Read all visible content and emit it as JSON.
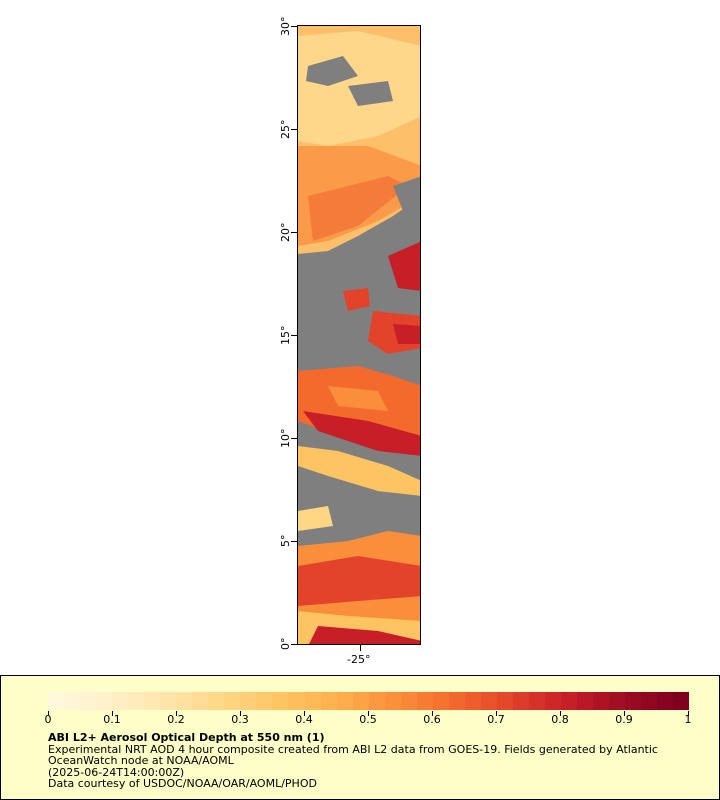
{
  "map": {
    "y_labels": [
      "0°",
      "5°",
      "10°",
      "15°",
      "20°",
      "25°",
      "30°"
    ],
    "x_labels": [
      "-25°"
    ]
  },
  "colorbar": {
    "labels": [
      "0",
      "0.1",
      "0.2",
      "0.3",
      "0.4",
      "0.5",
      "0.6",
      "0.7",
      "0.8",
      "0.9",
      "1"
    ],
    "colors": [
      "#fff8dc",
      "#fff0c8",
      "#ffe4a8",
      "#ffd684",
      "#ffc462",
      "#ffae4a",
      "#fb8e3a",
      "#f36a2c",
      "#e3432a",
      "#c81e28",
      "#9c0c22",
      "#800020"
    ]
  },
  "caption": {
    "title": "ABI L2+ Aerosol Optical Depth at 550 nm (1)",
    "line1": "Experimental NRT AOD 4 hour composite created from ABI L2 data from GOES-19. Fields generated by Atlantic",
    "line2": "OceanWatch node at NOAA/AOML",
    "line3": "(2025-06-24T14:00:00Z)",
    "line4": "Data courtesy of USDOC/NOAA/OAR/AOML/PHOD"
  }
}
